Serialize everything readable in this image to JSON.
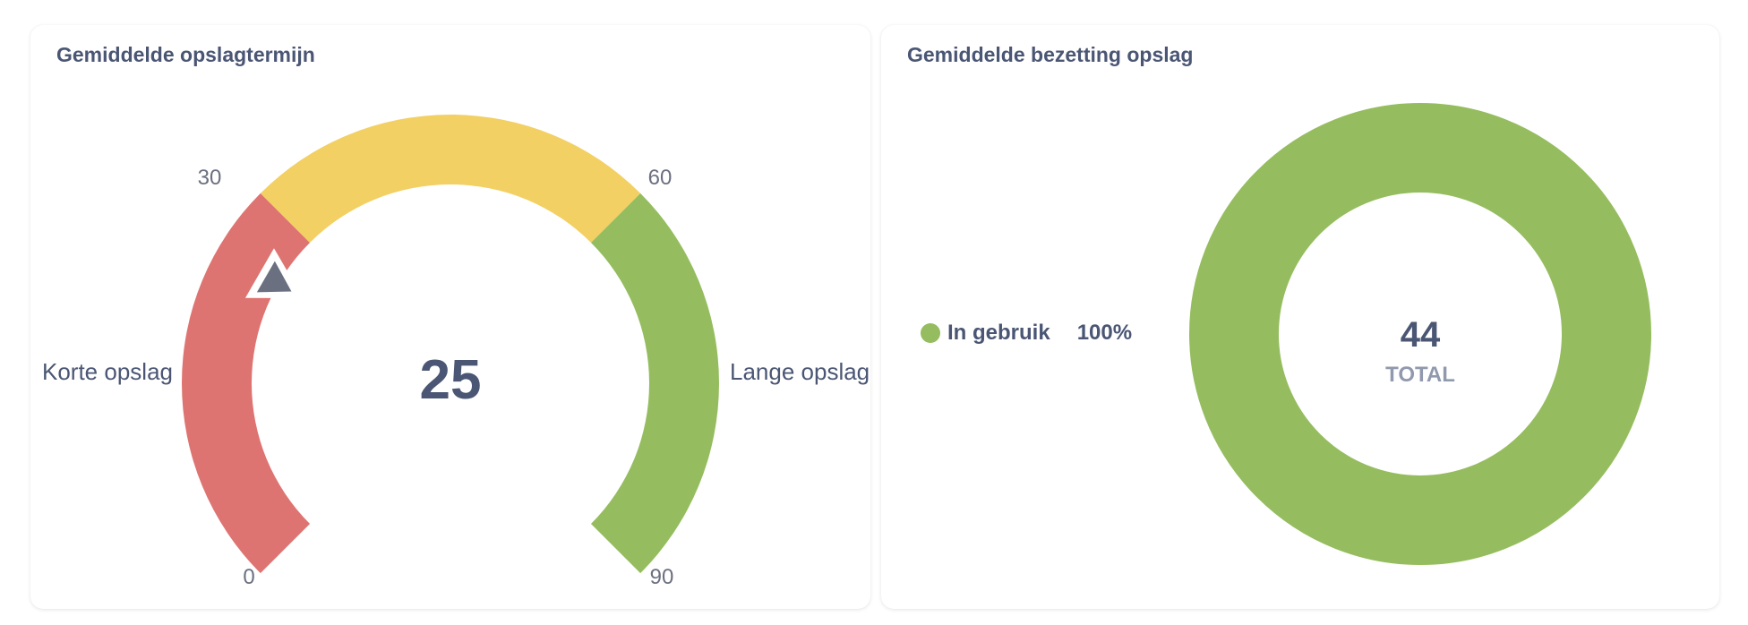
{
  "cards": {
    "left": {
      "title": "Gemiddelde opslagtermijn"
    },
    "right": {
      "title": "Gemiddelde bezetting opslag"
    }
  },
  "gauge": {
    "value": "25",
    "min_label": "0",
    "t1_label": "30",
    "t2_label": "60",
    "max_label": "90",
    "left_label": "Korte opslag",
    "right_label": "Lange opslag"
  },
  "donut": {
    "total": "44",
    "total_label": "TOTAL",
    "legend": [
      {
        "label": "In gebruik",
        "percent": "100%",
        "color": "#95bd5f"
      }
    ]
  },
  "colors": {
    "red": "#de7471",
    "yellow": "#f2d063",
    "green": "#95bd5f",
    "needle": "#6b7080",
    "text": "#4a5674",
    "muted": "#9099ad"
  },
  "chart_data": [
    {
      "type": "gauge",
      "title": "Gemiddelde opslagtermijn",
      "value": 25,
      "min": 0,
      "max": 90,
      "segments": [
        {
          "from": 0,
          "to": 30,
          "color": "#de7471",
          "label": "Korte opslag"
        },
        {
          "from": 30,
          "to": 60,
          "color": "#f2d063"
        },
        {
          "from": 60,
          "to": 90,
          "color": "#95bd5f",
          "label": "Lange opslag"
        }
      ],
      "tick_labels": [
        "0",
        "30",
        "60",
        "90"
      ]
    },
    {
      "type": "pie",
      "subtype": "donut",
      "title": "Gemiddelde bezetting opslag",
      "categories": [
        "In gebruik"
      ],
      "values": [
        44
      ],
      "percentages": [
        100
      ],
      "colors": [
        "#95bd5f"
      ],
      "center_text": {
        "value": "44",
        "label": "TOTAL"
      },
      "legend_position": "left"
    }
  ]
}
